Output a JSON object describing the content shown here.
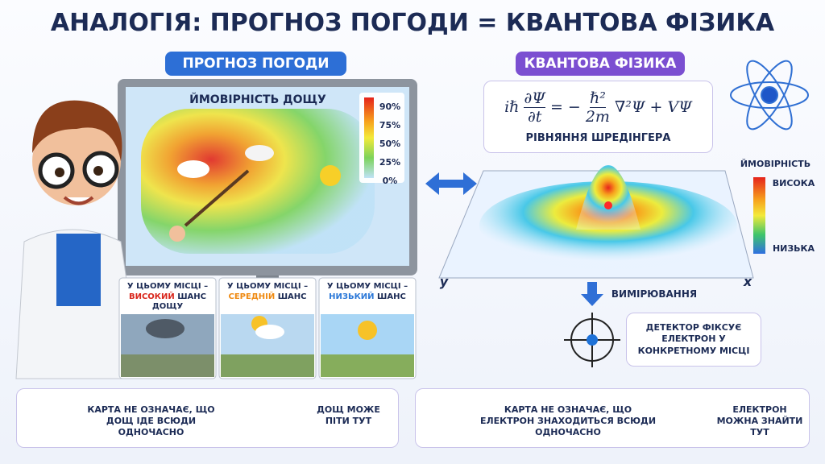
{
  "header": {
    "title": "АНАЛОГІЯ: ПРОГНОЗ ПОГОДИ = КВАНТОВА ФІЗИКА"
  },
  "weather": {
    "label": "ПРОГНОЗ ПОГОДИ",
    "map_title": "ЙМОВІРНІСТЬ ДОЩУ",
    "legend": [
      "90%",
      "75%",
      "50%",
      "25%",
      "0%"
    ],
    "cards": [
      {
        "lead": "У ЦЬОМУ МІСЦІ –",
        "level": "ВИСОКИЙ",
        "tail": "ШАНС ДОЩУ"
      },
      {
        "lead": "У ЦЬОМУ МІСЦІ –",
        "level": "СЕРЕДНІЙ",
        "tail": "ШАНС"
      },
      {
        "lead": "У ЦЬОМУ МІСЦІ –",
        "level": "НИЗЬКИЙ",
        "tail": "ШАНС"
      }
    ]
  },
  "quantum": {
    "label": "КВАНТОВА ФІЗИКА",
    "equation": {
      "lhs": "iℏ",
      "num": "∂Ψ",
      "den": "∂t",
      "eq": "= −",
      "num2": "ℏ²",
      "den2": "2m",
      "rest": "∇²Ψ + VΨ"
    },
    "equation_name": "РІВНЯННЯ ШРЕДІНГЕРА",
    "legend_title": "ЙМОВІРНІСТЬ",
    "legend_high": "ВИСОКА",
    "legend_low": "НИЗЬКА",
    "axis_y": "y",
    "axis_x": "x",
    "measure": "ВИМІРЮВАННЯ",
    "detector": "ДЕТЕКТОР ФІКСУЄ ЕЛЕКТРОН У КОНКРЕТНОМУ МІСЦІ"
  },
  "footer": {
    "weather_note": "КАРТА НЕ ОЗНАЧАЄ, ЩО ДОЩ ІДЕ ВСЮДИ ОДНОЧАСНО",
    "weather_result": "ДОЩ МОЖЕ ПІТИ ТУТ",
    "quantum_note": "КАРТА НЕ ОЗНАЧАЄ, ЩО ЕЛЕКТРОН ЗНАХОДИТЬСЯ ВСЮДИ ОДНОЧАСНО",
    "quantum_result": "ЕЛЕКТРОН МОЖНА ЗНАЙТИ ТУТ"
  }
}
